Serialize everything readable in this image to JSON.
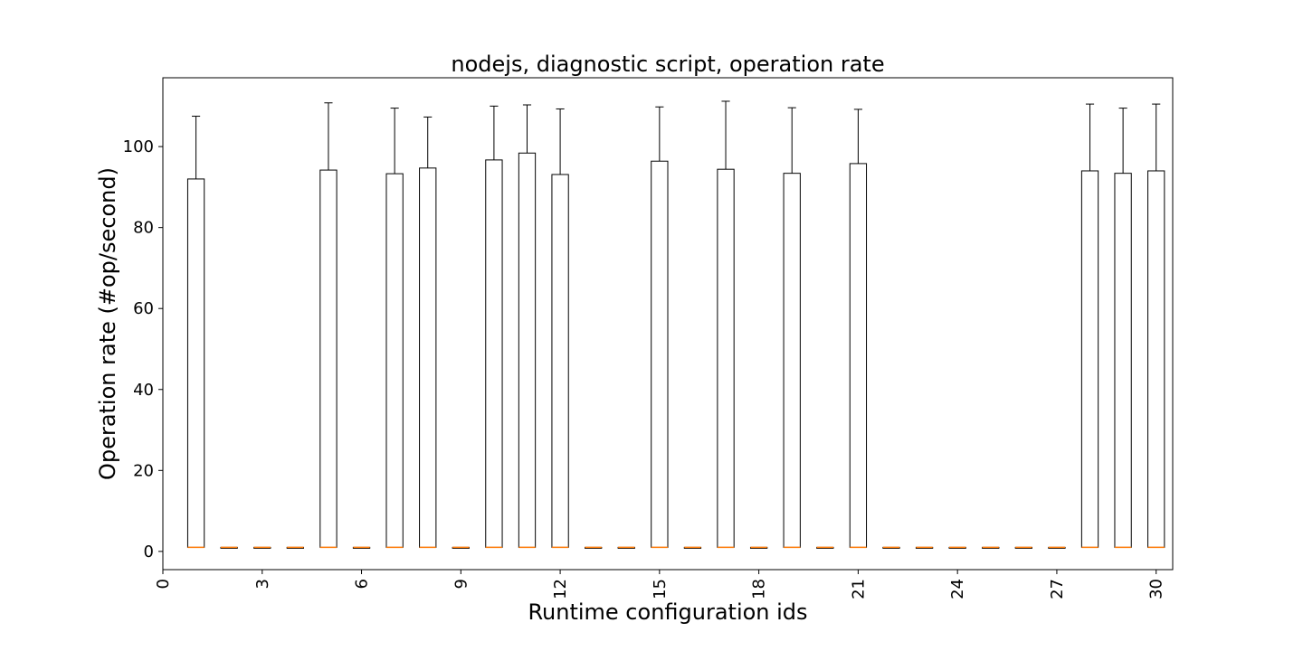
{
  "chart_data": {
    "type": "box",
    "title": "nodejs, diagnostic script, operation rate",
    "xlabel": "Runtime configuration ids",
    "ylabel": "Operation rate (#op/second)",
    "xlim": [
      0,
      30.5
    ],
    "ylim": [
      -4.5,
      117
    ],
    "xticks": [
      0,
      3,
      6,
      9,
      12,
      15,
      18,
      21,
      24,
      27,
      30
    ],
    "yticks": [
      0,
      20,
      40,
      60,
      80,
      100
    ],
    "grid": false,
    "legend": "none",
    "colors": {
      "box": "#000000",
      "median": "#ff7f0e"
    },
    "boxes": [
      {
        "x": 1,
        "q1": 1,
        "median": 1,
        "q3": 92.0,
        "whisker_high": 107.5
      },
      {
        "x": 2,
        "q1": 1,
        "median": 1,
        "q3": 1,
        "whisker_high": 1
      },
      {
        "x": 3,
        "q1": 1,
        "median": 1,
        "q3": 1,
        "whisker_high": 1
      },
      {
        "x": 4,
        "q1": 1,
        "median": 1,
        "q3": 1,
        "whisker_high": 1
      },
      {
        "x": 5,
        "q1": 1,
        "median": 1,
        "q3": 94.2,
        "whisker_high": 110.8
      },
      {
        "x": 6,
        "q1": 1,
        "median": 1,
        "q3": 1,
        "whisker_high": 1
      },
      {
        "x": 7,
        "q1": 1,
        "median": 1,
        "q3": 93.3,
        "whisker_high": 109.5
      },
      {
        "x": 8,
        "q1": 1,
        "median": 1,
        "q3": 94.7,
        "whisker_high": 107.3
      },
      {
        "x": 9,
        "q1": 1,
        "median": 1,
        "q3": 1,
        "whisker_high": 1
      },
      {
        "x": 10,
        "q1": 1,
        "median": 1,
        "q3": 96.7,
        "whisker_high": 110.0
      },
      {
        "x": 11,
        "q1": 1,
        "median": 1,
        "q3": 98.4,
        "whisker_high": 110.3
      },
      {
        "x": 12,
        "q1": 1,
        "median": 1,
        "q3": 93.1,
        "whisker_high": 109.3
      },
      {
        "x": 13,
        "q1": 1,
        "median": 1,
        "q3": 1,
        "whisker_high": 1
      },
      {
        "x": 14,
        "q1": 1,
        "median": 1,
        "q3": 1,
        "whisker_high": 1
      },
      {
        "x": 15,
        "q1": 1,
        "median": 1,
        "q3": 96.4,
        "whisker_high": 109.8
      },
      {
        "x": 16,
        "q1": 1,
        "median": 1,
        "q3": 1,
        "whisker_high": 1
      },
      {
        "x": 17,
        "q1": 1,
        "median": 1,
        "q3": 94.4,
        "whisker_high": 111.2
      },
      {
        "x": 18,
        "q1": 1,
        "median": 1,
        "q3": 1,
        "whisker_high": 1
      },
      {
        "x": 19,
        "q1": 1,
        "median": 1,
        "q3": 93.4,
        "whisker_high": 109.6
      },
      {
        "x": 20,
        "q1": 1,
        "median": 1,
        "q3": 1,
        "whisker_high": 1
      },
      {
        "x": 21,
        "q1": 1,
        "median": 1,
        "q3": 95.8,
        "whisker_high": 109.2
      },
      {
        "x": 22,
        "q1": 1,
        "median": 1,
        "q3": 1,
        "whisker_high": 1
      },
      {
        "x": 23,
        "q1": 1,
        "median": 1,
        "q3": 1,
        "whisker_high": 1
      },
      {
        "x": 24,
        "q1": 1,
        "median": 1,
        "q3": 1,
        "whisker_high": 1
      },
      {
        "x": 25,
        "q1": 1,
        "median": 1,
        "q3": 1,
        "whisker_high": 1
      },
      {
        "x": 26,
        "q1": 1,
        "median": 1,
        "q3": 1,
        "whisker_high": 1
      },
      {
        "x": 27,
        "q1": 1,
        "median": 1,
        "q3": 1,
        "whisker_high": 1
      },
      {
        "x": 28,
        "q1": 1,
        "median": 1,
        "q3": 94.0,
        "whisker_high": 110.5
      },
      {
        "x": 29,
        "q1": 1,
        "median": 1,
        "q3": 93.4,
        "whisker_high": 109.5
      },
      {
        "x": 30,
        "q1": 1,
        "median": 1,
        "q3": 94.0,
        "whisker_high": 110.5
      }
    ]
  }
}
